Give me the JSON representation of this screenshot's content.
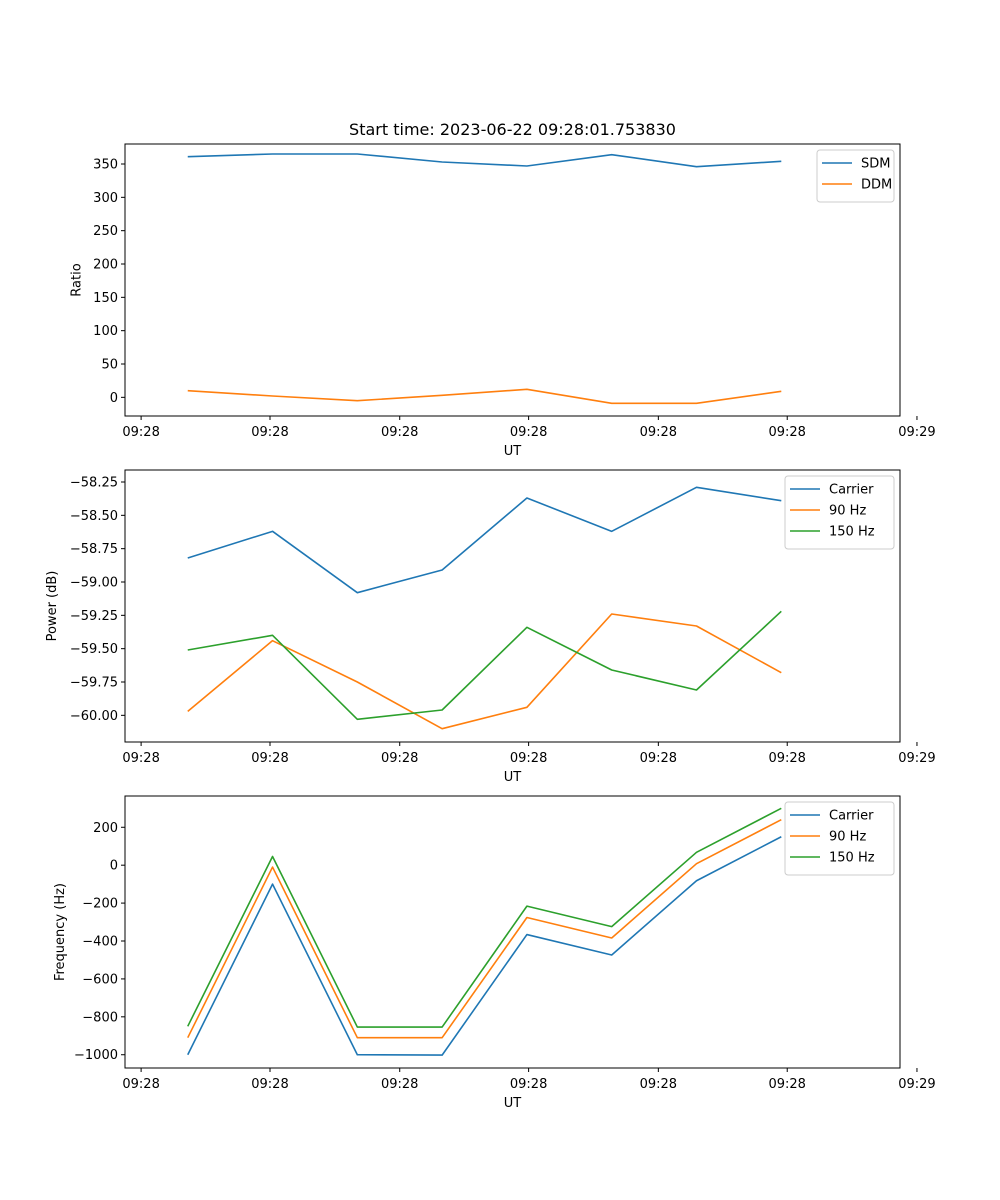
{
  "figure": {
    "title": "Start time: 2023-06-22 09:28:01.753830"
  },
  "colors": {
    "blue": "#1f77b4",
    "orange": "#ff7f0e",
    "green": "#2ca02c"
  },
  "chart_data": [
    {
      "type": "line",
      "title": "Start time: 2023-06-22 09:28:01.753830",
      "xlabel": "UT",
      "ylabel": "Ratio",
      "x": [
        1.0,
        2.0,
        3.0,
        4.0,
        5.0,
        6.0,
        7.0,
        8.0
      ],
      "xlim": [
        0.26,
        9.4
      ],
      "xticks": [
        0.45,
        1.97,
        3.5,
        5.02,
        6.55,
        8.07,
        9.6
      ],
      "xticklabels": [
        "09:28",
        "09:28",
        "09:28",
        "09:28",
        "09:28",
        "09:28",
        "09:29"
      ],
      "ylim": [
        -28,
        380
      ],
      "yticks": [
        0,
        50,
        100,
        150,
        200,
        250,
        300,
        350
      ],
      "yticklabels": [
        "0",
        "50",
        "100",
        "150",
        "200",
        "250",
        "300",
        "350"
      ],
      "legend": "top-right",
      "series": [
        {
          "name": "SDM",
          "color": "#1f77b4",
          "values": [
            361,
            365,
            365,
            353,
            347,
            364,
            346,
            354
          ]
        },
        {
          "name": "DDM",
          "color": "#ff7f0e",
          "values": [
            10,
            2,
            -5,
            3,
            12,
            -9,
            -9,
            9
          ]
        }
      ]
    },
    {
      "type": "line",
      "xlabel": "UT",
      "ylabel": "Power (dB)",
      "x": [
        1.0,
        2.0,
        3.0,
        4.0,
        5.0,
        6.0,
        7.0,
        8.0
      ],
      "xlim": [
        0.26,
        9.4
      ],
      "xticks": [
        0.45,
        1.97,
        3.5,
        5.02,
        6.55,
        8.07,
        9.6
      ],
      "xticklabels": [
        "09:28",
        "09:28",
        "09:28",
        "09:28",
        "09:28",
        "09:28",
        "09:29"
      ],
      "ylim": [
        -60.2,
        -58.16
      ],
      "yticks": [
        -60.0,
        -59.75,
        -59.5,
        -59.25,
        -59.0,
        -58.75,
        -58.5,
        -58.25
      ],
      "yticklabels": [
        "−60.00",
        "−59.75",
        "−59.50",
        "−59.25",
        "−59.00",
        "−58.75",
        "−58.50",
        "−58.25"
      ],
      "legend": "top-right",
      "series": [
        {
          "name": "Carrier",
          "color": "#1f77b4",
          "values": [
            -58.82,
            -58.62,
            -59.08,
            -58.91,
            -58.37,
            -58.62,
            -58.29,
            -58.39
          ]
        },
        {
          "name": "90 Hz",
          "color": "#ff7f0e",
          "values": [
            -59.97,
            -59.44,
            -59.75,
            -60.1,
            -59.94,
            -59.24,
            -59.33,
            -59.68
          ]
        },
        {
          "name": "150 Hz",
          "color": "#2ca02c",
          "values": [
            -59.51,
            -59.4,
            -60.03,
            -59.96,
            -59.34,
            -59.66,
            -59.81,
            -59.22
          ]
        }
      ]
    },
    {
      "type": "line",
      "xlabel": "UT",
      "ylabel": "Frequency (Hz)",
      "x": [
        1.0,
        2.0,
        3.0,
        4.0,
        5.0,
        6.0,
        7.0,
        8.0
      ],
      "xlim": [
        0.26,
        9.4
      ],
      "xticks": [
        0.45,
        1.97,
        3.5,
        5.02,
        6.55,
        8.07,
        9.6
      ],
      "xticklabels": [
        "09:28",
        "09:28",
        "09:28",
        "09:28",
        "09:28",
        "09:28",
        "09:29"
      ],
      "ylim": [
        -1070,
        365
      ],
      "yticks": [
        -1000,
        -800,
        -600,
        -400,
        -200,
        0,
        200
      ],
      "yticklabels": [
        "−1000",
        "−800",
        "−600",
        "−400",
        "−200",
        "0",
        "200"
      ],
      "legend": "top-right",
      "series": [
        {
          "name": "Carrier",
          "color": "#1f77b4",
          "values": [
            -1000,
            -100,
            -1000,
            -1002,
            -366,
            -474,
            -82,
            150
          ]
        },
        {
          "name": "90 Hz",
          "color": "#ff7f0e",
          "values": [
            -910,
            -10,
            -910,
            -910,
            -276,
            -384,
            8,
            240
          ]
        },
        {
          "name": "150 Hz",
          "color": "#2ca02c",
          "values": [
            -850,
            46,
            -854,
            -854,
            -216,
            -324,
            68,
            300
          ]
        }
      ]
    }
  ]
}
